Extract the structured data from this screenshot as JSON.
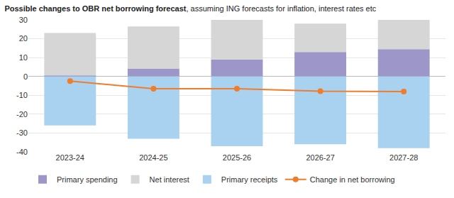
{
  "chart_data": {
    "type": "bar",
    "title": "Possible changes to OBR net borrowing forecast",
    "subtitle": ", assuming ING forecasts for inflation, interest rates etc",
    "categories": [
      "2023-24",
      "2024-25",
      "2025-26",
      "2026-27",
      "2027-28"
    ],
    "stacked": true,
    "grid": true,
    "legend": "bottom",
    "ylim": [
      -40,
      30
    ],
    "yticks": [
      -40,
      -30,
      -20,
      -10,
      0,
      10,
      20,
      30
    ],
    "series": [
      {
        "name": "Primary spending",
        "type": "bar",
        "color": "#9d97c9",
        "values": [
          0.5,
          4,
          9,
          13,
          14.5
        ]
      },
      {
        "name": "Net interest",
        "type": "bar",
        "color": "#d6d6d6",
        "values": [
          22.5,
          22.5,
          21,
          15,
          15.5
        ]
      },
      {
        "name": "Primary receipts",
        "type": "bar",
        "color": "#a9d1f0",
        "values": [
          -26,
          -33,
          -37,
          -36,
          -38
        ]
      },
      {
        "name": "Change in net borrowing",
        "type": "line",
        "color": "#f07d2b",
        "marker": "circle",
        "values": [
          -2.5,
          -6.5,
          -6.5,
          -7.8,
          -8
        ]
      }
    ]
  }
}
